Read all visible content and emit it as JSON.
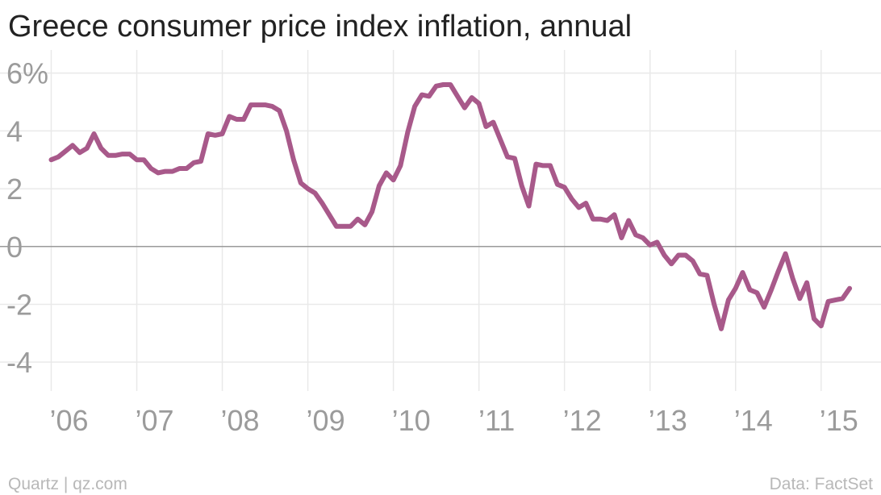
{
  "chart_data": {
    "type": "line",
    "title": "Greece consumer price index inflation, annual",
    "source": "Data: FactSet",
    "credit": "Quartz | qz.com",
    "xlabel": "",
    "ylabel": "",
    "grid": true,
    "xlim": [
      2005.92,
      2015.7
    ],
    "ylim": [
      -5,
      6.8
    ],
    "y_ticks": [
      6,
      4,
      2,
      0,
      -2,
      -4
    ],
    "y_tick_labels": [
      "6%",
      "4",
      "2",
      "0",
      "-2",
      "-4"
    ],
    "x_ticks": [
      2006,
      2007,
      2008,
      2009,
      2010,
      2011,
      2012,
      2013,
      2014,
      2015
    ],
    "x_tick_labels": [
      "’06",
      "’07",
      "’08",
      "’09",
      "’10",
      "’11",
      "’12",
      "’13",
      "’14",
      "’15"
    ],
    "colors": {
      "line": "#a8598a"
    },
    "series": [
      {
        "x": [
          2006.0,
          2006.083,
          2006.167,
          2006.25,
          2006.333,
          2006.417,
          2006.5,
          2006.583,
          2006.667,
          2006.75,
          2006.833,
          2006.917,
          2007.0,
          2007.083,
          2007.167,
          2007.25,
          2007.333,
          2007.417,
          2007.5,
          2007.583,
          2007.667,
          2007.75,
          2007.833,
          2007.917,
          2008.0,
          2008.083,
          2008.167,
          2008.25,
          2008.333,
          2008.417,
          2008.5,
          2008.583,
          2008.667,
          2008.75,
          2008.833,
          2008.917,
          2009.0,
          2009.083,
          2009.167,
          2009.25,
          2009.333,
          2009.417,
          2009.5,
          2009.583,
          2009.667,
          2009.75,
          2009.833,
          2009.917,
          2010.0,
          2010.083,
          2010.167,
          2010.25,
          2010.333,
          2010.417,
          2010.5,
          2010.583,
          2010.667,
          2010.75,
          2010.833,
          2010.917,
          2011.0,
          2011.083,
          2011.167,
          2011.25,
          2011.333,
          2011.417,
          2011.5,
          2011.583,
          2011.667,
          2011.75,
          2011.833,
          2011.917,
          2012.0,
          2012.083,
          2012.167,
          2012.25,
          2012.333,
          2012.417,
          2012.5,
          2012.583,
          2012.667,
          2012.75,
          2012.833,
          2012.917,
          2013.0,
          2013.083,
          2013.167,
          2013.25,
          2013.333,
          2013.417,
          2013.5,
          2013.583,
          2013.667,
          2013.75,
          2013.833,
          2013.917,
          2014.0,
          2014.083,
          2014.167,
          2014.25,
          2014.333,
          2014.417,
          2014.5,
          2014.583,
          2014.667,
          2014.75,
          2014.833,
          2014.917,
          2015.0,
          2015.083,
          2015.167,
          2015.25,
          2015.333
        ],
        "values": [
          3.0,
          3.1,
          3.3,
          3.5,
          3.25,
          3.4,
          3.9,
          3.4,
          3.15,
          3.15,
          3.2,
          3.2,
          3.0,
          3.0,
          2.7,
          2.55,
          2.6,
          2.6,
          2.7,
          2.7,
          2.9,
          2.95,
          3.9,
          3.85,
          3.9,
          4.5,
          4.4,
          4.4,
          4.9,
          4.9,
          4.9,
          4.85,
          4.7,
          4.0,
          3.0,
          2.2,
          2.0,
          1.85,
          1.5,
          1.1,
          0.7,
          0.7,
          0.7,
          0.95,
          0.75,
          1.2,
          2.1,
          2.55,
          2.3,
          2.8,
          3.95,
          4.85,
          5.25,
          5.2,
          5.55,
          5.6,
          5.6,
          5.2,
          4.8,
          5.15,
          4.95,
          4.15,
          4.3,
          3.7,
          3.1,
          3.05,
          2.1,
          1.4,
          2.85,
          2.8,
          2.8,
          2.15,
          2.05,
          1.65,
          1.35,
          1.5,
          0.95,
          0.95,
          0.9,
          1.1,
          0.3,
          0.9,
          0.4,
          0.3,
          0.05,
          0.15,
          -0.3,
          -0.6,
          -0.3,
          -0.3,
          -0.5,
          -0.95,
          -1.0,
          -2.0,
          -2.85,
          -1.85,
          -1.45,
          -0.9,
          -1.5,
          -1.6,
          -2.1,
          -1.5,
          -0.85,
          -0.25,
          -1.1,
          -1.8,
          -1.25,
          -2.5,
          -2.75,
          -1.9,
          -1.85,
          -1.8,
          -1.45
        ]
      }
    ]
  }
}
